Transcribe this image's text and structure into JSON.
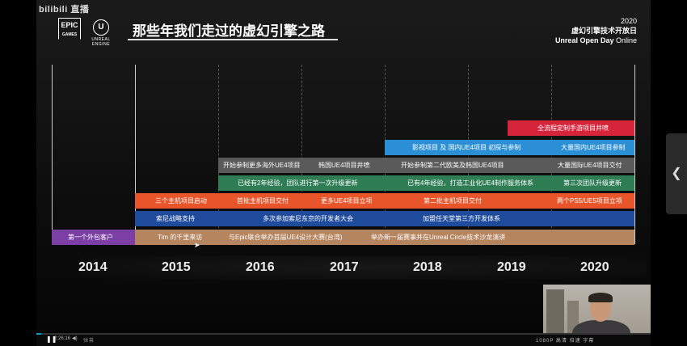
{
  "watermark": "bilibili 直播",
  "logos": {
    "epic_top": "EPIC",
    "epic_bottom": "GAMES",
    "ue_label": "UNREAL ENGINE"
  },
  "title": "那些年我们走过的虚幻引擎之路",
  "event": {
    "year": "2020",
    "name": "虚幻引擎技术开放日",
    "sub_bold": "Unreal Open Day",
    "sub": "Online"
  },
  "years": [
    "2014",
    "2015",
    "2016",
    "2017",
    "2018",
    "2019",
    "2020"
  ],
  "colors": {
    "purple": "#7b3fa6",
    "tan": "#b58560",
    "blue": "#1e4b9c",
    "orange": "#e8552a",
    "green": "#2e7d55",
    "gray": "#5a5a5a",
    "lightblue": "#2b8fd6",
    "red": "#d6253b"
  },
  "rows": {
    "purple": [
      "第一个外包客户"
    ],
    "tan": [
      "Tim 的千里来访",
      "与Epic联合举办首届UE4设计大赛(台湾)",
      "举办新一届赛事并在Unreal Circle技术沙龙演讲"
    ],
    "blue": [
      "索尼战略支持",
      "多次参加索尼东京的开发者大会",
      "加盟任天堂第三方开发体系"
    ],
    "orange": [
      "三个主机项目启动",
      "首批主机项目交付",
      "更多UE4项目立项",
      "第二批主机项目交付",
      "两个PS5/UE5项目立项"
    ],
    "green": [
      "已经有2年经验，团队进行第一次升级更新",
      "已有4年经验，打造工业化UE4制作服务体系",
      "第三次团队升级更新"
    ],
    "gray": [
      "开始参制更多海外UE4项目",
      "韩国UE4项目井喷",
      "开始参制第二代欧美及韩国UE4项目",
      "大量国际UE4项目交付"
    ],
    "lightblue": [
      "影视项目 及 国内UE4项目 初探与参制",
      "大量国内UE4项目参制"
    ],
    "red": [
      "全流程定制手游项目井喷"
    ]
  },
  "player": {
    "time": "2:26:16",
    "danmu": "弹幕",
    "right": "1080P 高清 倍速 字幕"
  }
}
